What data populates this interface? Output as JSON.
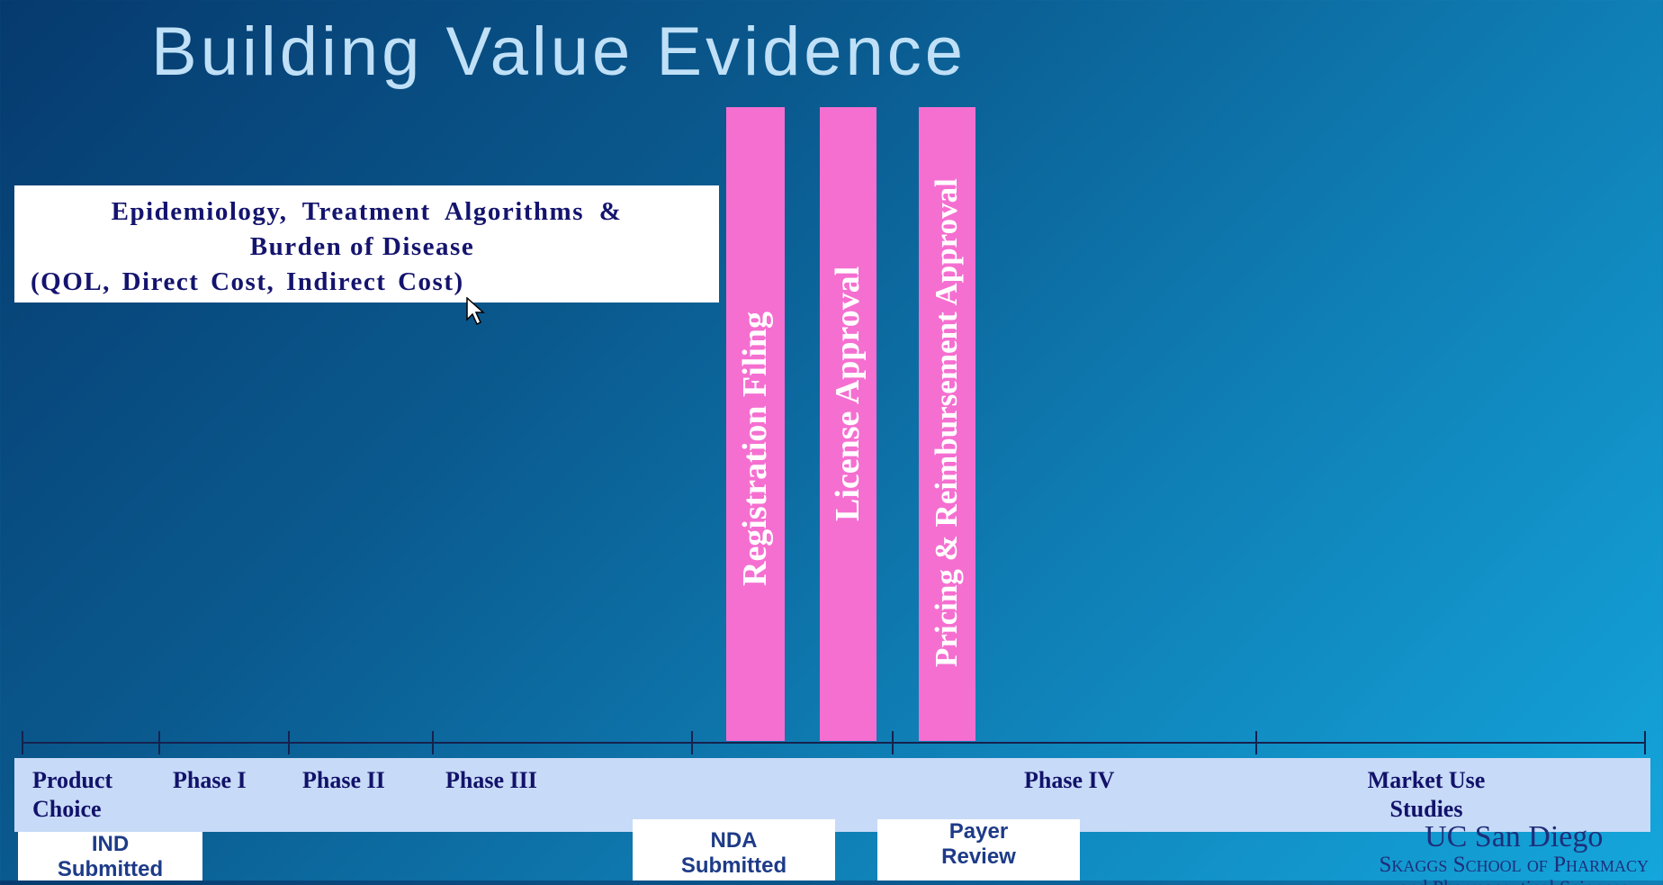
{
  "title": "Building Value Evidence",
  "evidence_box": {
    "line1": "Epidemiology, Treatment Algorithms &",
    "line2": "Burden of Disease",
    "line3": "(QOL, Direct Cost, Indirect Cost)"
  },
  "milestone_bars": [
    {
      "label": "Registration Filing"
    },
    {
      "label": "License Approval"
    },
    {
      "label": "Pricing & Reimbursement Approval"
    }
  ],
  "phases": [
    {
      "label": "Product Choice"
    },
    {
      "label": "Phase I"
    },
    {
      "label": "Phase II"
    },
    {
      "label": "Phase III"
    },
    {
      "label": "Phase IV"
    },
    {
      "label": "Market Use Studies"
    }
  ],
  "submissions": [
    {
      "line1": "IND",
      "line2": "Submitted"
    },
    {
      "line1": "NDA",
      "line2": "Submitted"
    },
    {
      "line1": "Payer",
      "line2": "Review"
    }
  ],
  "logo": {
    "line1": "UC San Diego",
    "line2": "Skaggs School of Pharmacy",
    "line3": "and Pharmaceutical Sciences"
  },
  "colors": {
    "bar": "#f56fd0",
    "band": "#c7daf7",
    "title": "#bfe0f7",
    "dark_text": "#12126a"
  }
}
